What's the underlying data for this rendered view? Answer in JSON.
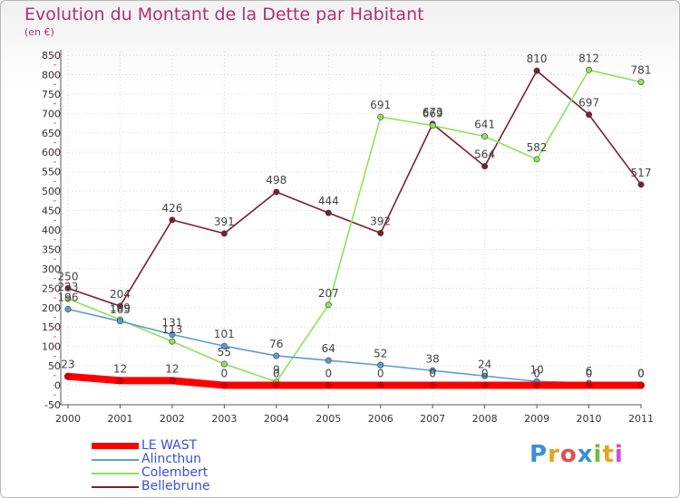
{
  "chart_data": {
    "type": "line",
    "title": "Evolution du Montant de la Dette par Habitant",
    "subtitle": "(en €)",
    "x": [
      "2000",
      "2001",
      "2002",
      "2003",
      "2004",
      "2005",
      "2006",
      "2007",
      "2008",
      "2009",
      "2010",
      "2011"
    ],
    "ylim": [
      -50,
      850
    ],
    "yticks": [
      -50,
      0,
      50,
      100,
      150,
      200,
      250,
      300,
      350,
      400,
      450,
      500,
      550,
      600,
      650,
      700,
      750,
      800,
      850
    ],
    "series": [
      {
        "name": "LE WAST",
        "color": "#ff0000",
        "values": [
          23,
          12,
          12,
          0,
          0,
          0,
          0,
          0,
          0,
          0,
          0,
          0
        ]
      },
      {
        "name": "Alincthun",
        "color": "#5b9bd5",
        "values": [
          196,
          165,
          131,
          101,
          76,
          64,
          52,
          38,
          24,
          10,
          6,
          0
        ]
      },
      {
        "name": "Colembert",
        "color": "#8ee15a",
        "values": [
          223,
          169,
          113,
          55,
          9,
          207,
          691,
          669,
          641,
          582,
          812,
          781
        ]
      },
      {
        "name": "Bellebrune",
        "color": "#7a1f2b",
        "values": [
          250,
          204,
          426,
          391,
          498,
          444,
          392,
          673,
          564,
          810,
          697,
          517
        ]
      }
    ],
    "legend_position": "bottom-left"
  },
  "logo": {
    "text": "Proxiti"
  }
}
